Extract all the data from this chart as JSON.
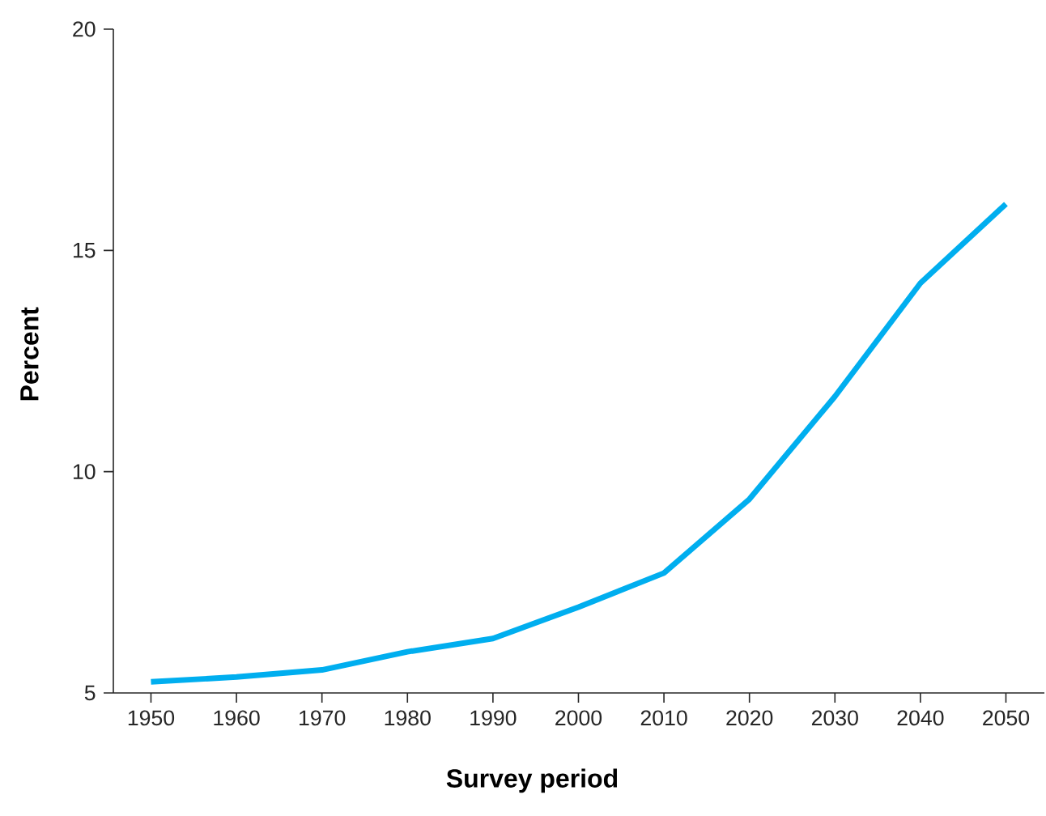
{
  "chart_data": {
    "type": "line",
    "xlabel": "Survey period",
    "ylabel": "Percent",
    "categories": [
      "1950",
      "1960",
      "1970",
      "1980",
      "1990",
      "2000",
      "2010",
      "2020",
      "2030",
      "2040",
      "2050"
    ],
    "series": [
      {
        "color": "#00aeef",
        "values": [
          5.25,
          5.36,
          5.52,
          5.93,
          6.23,
          6.94,
          7.71,
          9.38,
          11.7,
          14.26,
          16.05
        ]
      }
    ],
    "ylim": [
      5,
      20
    ],
    "yticks": [
      5,
      10,
      15,
      20
    ],
    "grid": false,
    "marker": "none",
    "line_style": "solid"
  }
}
